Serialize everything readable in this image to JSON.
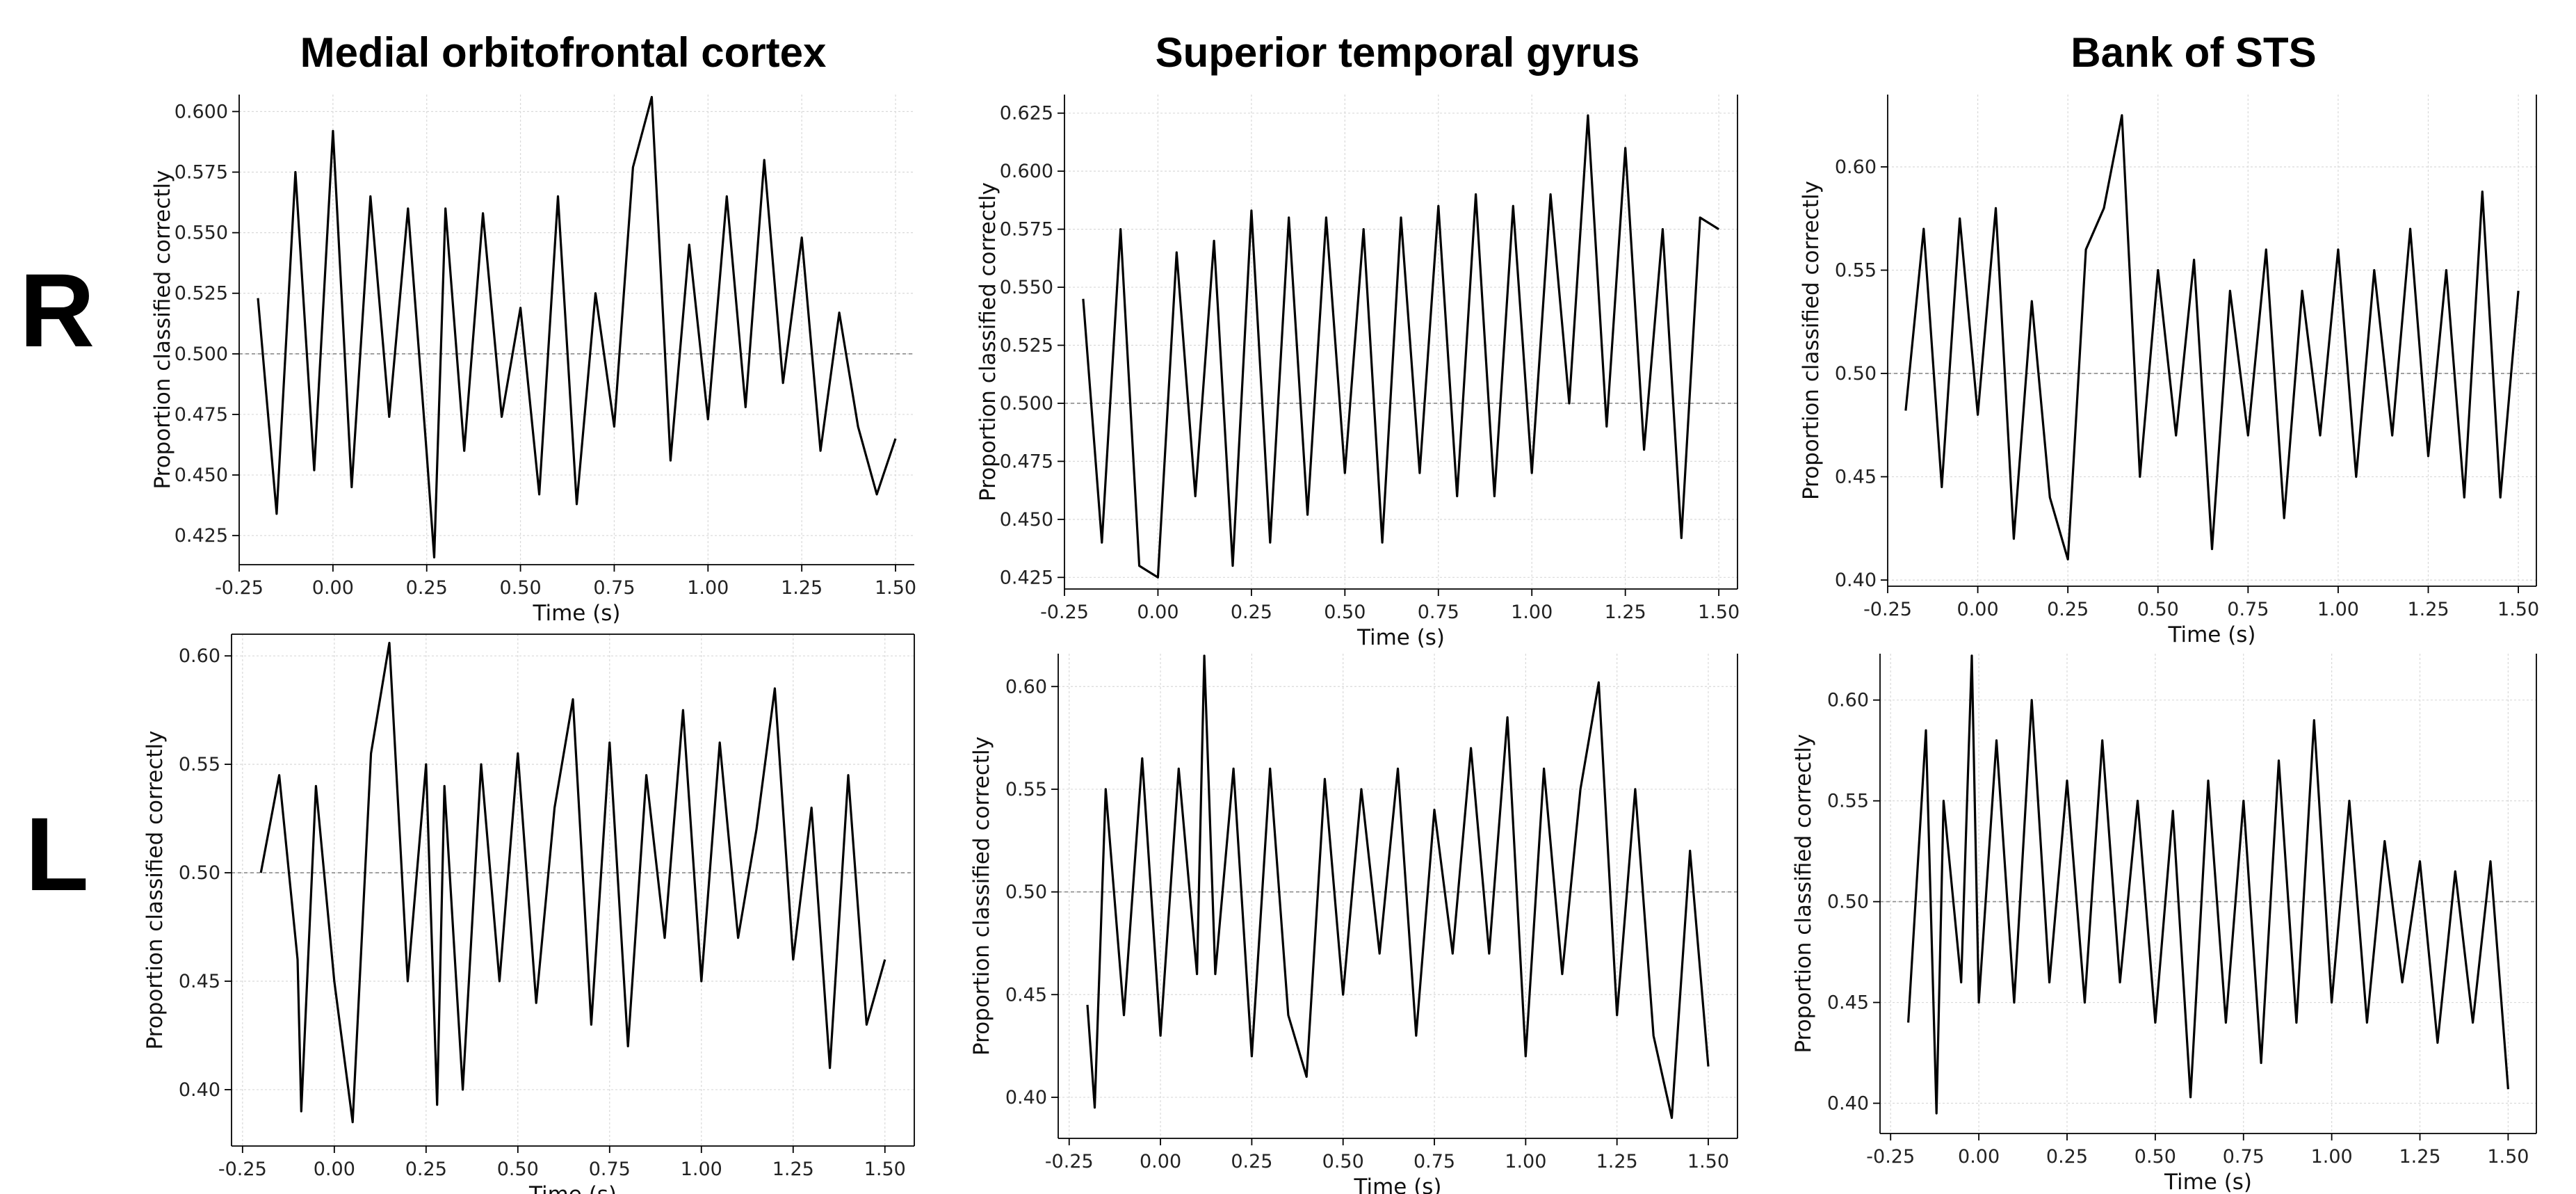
{
  "figure": {
    "columns": [
      "Medial orbitofrontal cortex",
      "Superior temporal gyrus",
      "Bank of STS"
    ],
    "rows": [
      "R",
      "L"
    ]
  },
  "chart_data": [
    {
      "type": "line",
      "column_title": "Medial orbitofrontal cortex",
      "row_label": "R",
      "xlabel": "Time (s)",
      "ylabel": "Proportion classified correctly",
      "xlim": [
        -0.25,
        1.55
      ],
      "ylim": [
        0.413,
        0.607
      ],
      "xticks": [
        "-0.25",
        "0.00",
        "0.25",
        "0.50",
        "0.75",
        "1.00",
        "1.25",
        "1.50"
      ],
      "yticks": [
        "0.425",
        "0.450",
        "0.475",
        "0.500",
        "0.525",
        "0.550",
        "0.575",
        "0.600"
      ],
      "chance": 0.5,
      "frame": "left-bottom",
      "grid": true,
      "series": [
        {
          "x": [
            -0.2,
            -0.15,
            -0.1,
            -0.05,
            0.0,
            0.05,
            0.1,
            0.15,
            0.2,
            0.25,
            0.27,
            0.3,
            0.35,
            0.4,
            0.45,
            0.5,
            0.55,
            0.6,
            0.65,
            0.7,
            0.75,
            0.8,
            0.85,
            0.9,
            0.95,
            1.0,
            1.05,
            1.1,
            1.15,
            1.2,
            1.25,
            1.3,
            1.35,
            1.4,
            1.45,
            1.5
          ],
          "y": [
            0.523,
            0.434,
            0.575,
            0.452,
            0.592,
            0.445,
            0.565,
            0.474,
            0.56,
            0.459,
            0.416,
            0.56,
            0.46,
            0.558,
            0.474,
            0.519,
            0.442,
            0.565,
            0.438,
            0.525,
            0.47,
            0.577,
            0.606,
            0.456,
            0.545,
            0.473,
            0.565,
            0.478,
            0.58,
            0.488,
            0.548,
            0.46,
            0.517,
            0.47,
            0.442,
            0.465
          ]
        }
      ]
    },
    {
      "type": "line",
      "column_title": "Superior temporal gyrus",
      "row_label": "R",
      "xlabel": "Time (s)",
      "ylabel": "Proportion classified correctly",
      "xlim": [
        -0.25,
        1.55
      ],
      "ylim": [
        0.42,
        0.633
      ],
      "xticks": [
        "-0.25",
        "0.00",
        "0.25",
        "0.50",
        "0.75",
        "1.00",
        "1.25",
        "1.50"
      ],
      "yticks": [
        "0.425",
        "0.450",
        "0.475",
        "0.500",
        "0.525",
        "0.550",
        "0.575",
        "0.600",
        "0.625"
      ],
      "chance": 0.5,
      "frame": "right-bottom",
      "grid": true,
      "series": [
        {
          "x": [
            -0.2,
            -0.15,
            -0.1,
            -0.05,
            0.0,
            0.05,
            0.1,
            0.15,
            0.2,
            0.25,
            0.3,
            0.35,
            0.4,
            0.45,
            0.5,
            0.55,
            0.6,
            0.65,
            0.7,
            0.75,
            0.8,
            0.85,
            0.9,
            0.95,
            1.0,
            1.05,
            1.1,
            1.15,
            1.2,
            1.25,
            1.3,
            1.35,
            1.4,
            1.45,
            1.5
          ],
          "y": [
            0.545,
            0.44,
            0.575,
            0.43,
            0.425,
            0.565,
            0.46,
            0.57,
            0.43,
            0.583,
            0.44,
            0.58,
            0.452,
            0.58,
            0.47,
            0.575,
            0.44,
            0.58,
            0.47,
            0.585,
            0.46,
            0.59,
            0.46,
            0.585,
            0.47,
            0.59,
            0.5,
            0.624,
            0.49,
            0.61,
            0.48,
            0.575,
            0.442,
            0.58,
            0.575
          ]
        }
      ]
    },
    {
      "type": "line",
      "column_title": "Bank of STS",
      "row_label": "R",
      "xlabel": "Time (s)",
      "ylabel": "Proportion classified correctly",
      "xlim": [
        -0.25,
        1.55
      ],
      "ylim": [
        0.397,
        0.635
      ],
      "xticks": [
        "-0.25",
        "0.00",
        "0.25",
        "0.50",
        "0.75",
        "1.00",
        "1.25",
        "1.50"
      ],
      "yticks": [
        "0.40",
        "0.45",
        "0.50",
        "0.55",
        "0.60"
      ],
      "chance": 0.5,
      "frame": "right-bottom",
      "grid": true,
      "series": [
        {
          "x": [
            -0.2,
            -0.15,
            -0.1,
            -0.05,
            0.0,
            0.05,
            0.1,
            0.15,
            0.2,
            0.25,
            0.3,
            0.35,
            0.4,
            0.45,
            0.5,
            0.55,
            0.6,
            0.65,
            0.7,
            0.75,
            0.8,
            0.85,
            0.9,
            0.95,
            1.0,
            1.05,
            1.1,
            1.15,
            1.2,
            1.25,
            1.3,
            1.35,
            1.4,
            1.45,
            1.5
          ],
          "y": [
            0.482,
            0.57,
            0.445,
            0.575,
            0.48,
            0.58,
            0.42,
            0.535,
            0.44,
            0.41,
            0.56,
            0.58,
            0.625,
            0.45,
            0.55,
            0.47,
            0.555,
            0.415,
            0.54,
            0.47,
            0.56,
            0.43,
            0.54,
            0.47,
            0.56,
            0.45,
            0.55,
            0.47,
            0.57,
            0.46,
            0.55,
            0.44,
            0.588,
            0.44,
            0.54
          ]
        }
      ]
    },
    {
      "type": "line",
      "column_title": "Medial orbitofrontal cortex",
      "row_label": "L",
      "xlabel": "Time (s)",
      "ylabel": "Proportion classified correctly",
      "xlim": [
        -0.28,
        1.58
      ],
      "ylim": [
        0.374,
        0.61
      ],
      "xticks": [
        "-0.25",
        "0.00",
        "0.25",
        "0.50",
        "0.75",
        "1.00",
        "1.25",
        "1.50"
      ],
      "yticks": [
        "0.40",
        "0.45",
        "0.50",
        "0.55",
        "0.60"
      ],
      "chance": 0.5,
      "frame": "box",
      "grid": true,
      "series": [
        {
          "x": [
            -0.2,
            -0.15,
            -0.1,
            -0.09,
            -0.05,
            0.0,
            0.05,
            0.1,
            0.15,
            0.2,
            0.25,
            0.28,
            0.3,
            0.35,
            0.4,
            0.45,
            0.5,
            0.55,
            0.6,
            0.65,
            0.7,
            0.75,
            0.8,
            0.85,
            0.9,
            0.95,
            1.0,
            1.05,
            1.1,
            1.15,
            1.2,
            1.25,
            1.3,
            1.35,
            1.4,
            1.45,
            1.5
          ],
          "y": [
            0.5,
            0.545,
            0.46,
            0.39,
            0.54,
            0.45,
            0.385,
            0.555,
            0.606,
            0.45,
            0.55,
            0.393,
            0.54,
            0.4,
            0.55,
            0.45,
            0.555,
            0.44,
            0.53,
            0.58,
            0.43,
            0.56,
            0.42,
            0.545,
            0.47,
            0.575,
            0.45,
            0.56,
            0.47,
            0.52,
            0.585,
            0.46,
            0.53,
            0.41,
            0.545,
            0.43,
            0.46
          ]
        }
      ]
    },
    {
      "type": "line",
      "column_title": "Superior temporal gyrus",
      "row_label": "L",
      "xlabel": "Time (s)",
      "ylabel": "Proportion classified correctly",
      "xlim": [
        -0.28,
        1.58
      ],
      "ylim": [
        0.38,
        0.616
      ],
      "xticks": [
        "-0.25",
        "0.00",
        "0.25",
        "0.50",
        "0.75",
        "1.00",
        "1.25",
        "1.50"
      ],
      "yticks": [
        "0.40",
        "0.45",
        "0.50",
        "0.55",
        "0.60"
      ],
      "chance": 0.5,
      "frame": "right-bottom",
      "grid": true,
      "series": [
        {
          "x": [
            -0.2,
            -0.18,
            -0.15,
            -0.1,
            -0.05,
            0.0,
            0.05,
            0.1,
            0.12,
            0.15,
            0.2,
            0.25,
            0.3,
            0.35,
            0.4,
            0.45,
            0.5,
            0.55,
            0.6,
            0.65,
            0.7,
            0.75,
            0.8,
            0.85,
            0.9,
            0.95,
            1.0,
            1.05,
            1.1,
            1.15,
            1.2,
            1.25,
            1.3,
            1.35,
            1.4,
            1.45,
            1.5
          ],
          "y": [
            0.445,
            0.395,
            0.55,
            0.44,
            0.565,
            0.43,
            0.56,
            0.46,
            0.615,
            0.46,
            0.56,
            0.42,
            0.56,
            0.44,
            0.41,
            0.555,
            0.45,
            0.55,
            0.47,
            0.56,
            0.43,
            0.54,
            0.47,
            0.57,
            0.47,
            0.585,
            0.42,
            0.56,
            0.46,
            0.55,
            0.602,
            0.44,
            0.55,
            0.43,
            0.39,
            0.52,
            0.415
          ]
        }
      ]
    },
    {
      "type": "line",
      "column_title": "Bank of STS",
      "row_label": "L",
      "xlabel": "Time (s)",
      "ylabel": "Proportion classified correctly",
      "xlim": [
        -0.28,
        1.58
      ],
      "ylim": [
        0.385,
        0.623
      ],
      "xticks": [
        "-0.25",
        "0.00",
        "0.25",
        "0.50",
        "0.75",
        "1.00",
        "1.25",
        "1.50"
      ],
      "yticks": [
        "0.40",
        "0.45",
        "0.50",
        "0.55",
        "0.60"
      ],
      "chance": 0.5,
      "frame": "right-bottom",
      "grid": true,
      "series": [
        {
          "x": [
            -0.2,
            -0.15,
            -0.12,
            -0.1,
            -0.05,
            -0.02,
            0.0,
            0.05,
            0.1,
            0.15,
            0.2,
            0.25,
            0.3,
            0.35,
            0.4,
            0.45,
            0.5,
            0.55,
            0.6,
            0.65,
            0.7,
            0.75,
            0.8,
            0.85,
            0.9,
            0.95,
            1.0,
            1.05,
            1.1,
            1.15,
            1.2,
            1.25,
            1.3,
            1.35,
            1.4,
            1.45,
            1.5
          ],
          "y": [
            0.44,
            0.585,
            0.395,
            0.55,
            0.46,
            0.622,
            0.45,
            0.58,
            0.45,
            0.6,
            0.46,
            0.56,
            0.45,
            0.58,
            0.46,
            0.55,
            0.44,
            0.545,
            0.403,
            0.56,
            0.44,
            0.55,
            0.42,
            0.57,
            0.44,
            0.59,
            0.45,
            0.55,
            0.44,
            0.53,
            0.46,
            0.52,
            0.43,
            0.515,
            0.44,
            0.52,
            0.407
          ]
        }
      ]
    }
  ]
}
